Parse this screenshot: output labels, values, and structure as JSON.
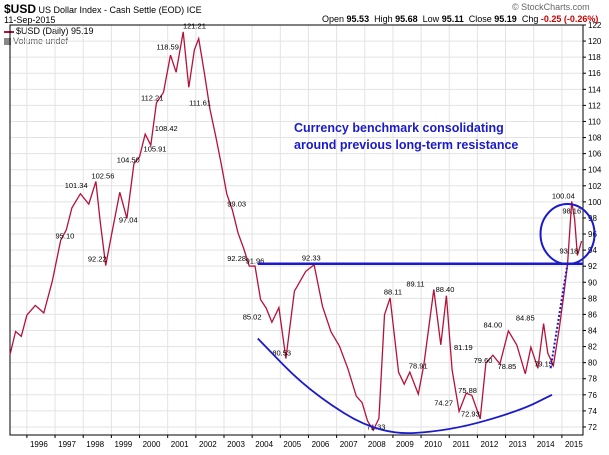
{
  "header": {
    "symbol": "$USD",
    "name": "US Dollar Index - Cash Settle (EOD) ICE",
    "date": "11-Sep-2015",
    "legend_line": "$USD (Daily) 95.19",
    "volume_line": "Volume undef",
    "watermark": "© StockCharts.com",
    "quotes": {
      "open_label": "Open",
      "open": "95.53",
      "high_label": "High",
      "high": "95.68",
      "low_label": "Low",
      "low": "95.11",
      "close_label": "Close",
      "close": "95.19",
      "chg_label": "Chg",
      "chg": "-0.25 (-0.26%)"
    }
  },
  "colors": {
    "price": "#b5123a",
    "annotation": "#1a1acc",
    "grid": "#e3e3e3",
    "axis": "#000000",
    "chg_negative": "#cc0000"
  },
  "chart_data": {
    "type": "line",
    "title": "$USD US Dollar Index - Cash Settle (EOD) ICE",
    "y_axis_side": "right",
    "ylim": [
      71,
      122
    ],
    "yticks": [
      72,
      74,
      76,
      78,
      80,
      82,
      84,
      86,
      88,
      90,
      92,
      94,
      96,
      98,
      100,
      102,
      104,
      106,
      108,
      110,
      112,
      114,
      116,
      118,
      120,
      122
    ],
    "xlim": [
      1995.4,
      2015.75
    ],
    "xticks": [
      1996,
      1997,
      1998,
      1999,
      2000,
      2001,
      2002,
      2003,
      2004,
      2005,
      2006,
      2007,
      2008,
      2009,
      2010,
      2011,
      2012,
      2013,
      2014,
      2015
    ],
    "grid": true,
    "series": [
      {
        "name": "$USD (Daily)",
        "x": [
          1995.4,
          1995.6,
          1995.8,
          1996.0,
          1996.3,
          1996.6,
          1996.9,
          1997.2,
          1997.4,
          1997.6,
          1997.9,
          1998.2,
          1998.45,
          1998.6,
          1998.8,
          1999.0,
          1999.3,
          1999.55,
          1999.8,
          2000.0,
          2000.2,
          2000.4,
          2000.6,
          2000.85,
          2001.1,
          2001.3,
          2001.55,
          2001.75,
          2001.95,
          2002.1,
          2002.3,
          2002.5,
          2002.7,
          2002.9,
          2003.1,
          2003.3,
          2003.5,
          2003.7,
          2003.9,
          2004.1,
          2004.3,
          2004.5,
          2004.7,
          2004.95,
          2005.2,
          2005.5,
          2005.9,
          2006.2,
          2006.5,
          2006.8,
          2007.1,
          2007.4,
          2007.7,
          2007.9,
          2008.1,
          2008.3,
          2008.5,
          2008.7,
          2008.9,
          2009.2,
          2009.4,
          2009.6,
          2009.9,
          2010.1,
          2010.45,
          2010.7,
          2010.9,
          2011.1,
          2011.35,
          2011.6,
          2011.8,
          2012.1,
          2012.3,
          2012.55,
          2012.8,
          2013.1,
          2013.4,
          2013.7,
          2013.9,
          2014.15,
          2014.35,
          2014.5,
          2014.7,
          2014.9,
          2015.05,
          2015.2,
          2015.35,
          2015.45,
          2015.55,
          2015.7
        ],
        "y": [
          81,
          84,
          83,
          86,
          87,
          86.5,
          90,
          95.1,
          96.5,
          99.2,
          101.34,
          99.5,
          102.56,
          97.5,
          92.22,
          96,
          101,
          98,
          104.5,
          105.9,
          108.42,
          107,
          112.21,
          113.5,
          118.59,
          116,
          121.21,
          114,
          119,
          120.5,
          116,
          111.61,
          108,
          105,
          101,
          99.03,
          96,
          94,
          92.28,
          91.96,
          88,
          86.5,
          85.02,
          87,
          80.53,
          89,
          91,
          92.33,
          87,
          84,
          82,
          79,
          76,
          75,
          73,
          71.33,
          73,
          86,
          88.11,
          79,
          77,
          78.91,
          76,
          80,
          89.11,
          82,
          88.4,
          79,
          74.27,
          76,
          75.88,
          72.93,
          80,
          81.19,
          79.6,
          84,
          82,
          78.85,
          82,
          79.15,
          84.85,
          81,
          80,
          84,
          88,
          92,
          100.04,
          98.16,
          93.18,
          95.19
        ]
      }
    ],
    "price_labels": [
      {
        "x": 1997.35,
        "y": 95.1,
        "text": "95.10"
      },
      {
        "x": 1997.75,
        "y": 101.34,
        "text": "101.34"
      },
      {
        "x": 1998.7,
        "y": 102.56,
        "text": "102.56"
      },
      {
        "x": 1998.5,
        "y": 92.22,
        "text": "92.22"
      },
      {
        "x": 1999.6,
        "y": 97.04,
        "text": "97.04"
      },
      {
        "x": 1999.6,
        "y": 104.5,
        "text": "104.50"
      },
      {
        "x": 2000.55,
        "y": 105.91,
        "text": "105.91"
      },
      {
        "x": 2000.95,
        "y": 108.42,
        "text": "108.42"
      },
      {
        "x": 2000.45,
        "y": 112.21,
        "text": "112.21"
      },
      {
        "x": 2001.0,
        "y": 118.59,
        "text": "118.59"
      },
      {
        "x": 2001.95,
        "y": 121.21,
        "text": "121.21"
      },
      {
        "x": 2002.15,
        "y": 111.61,
        "text": "111.61"
      },
      {
        "x": 2003.45,
        "y": 99.03,
        "text": "99.03"
      },
      {
        "x": 2003.45,
        "y": 92.28,
        "text": "92.28"
      },
      {
        "x": 2004.1,
        "y": 91.96,
        "text": "91.96"
      },
      {
        "x": 2004.0,
        "y": 85.02,
        "text": "85.02"
      },
      {
        "x": 2005.05,
        "y": 80.53,
        "text": "80.53"
      },
      {
        "x": 2006.1,
        "y": 92.33,
        "text": "92.33"
      },
      {
        "x": 2008.4,
        "y": 71.33,
        "text": "71.33"
      },
      {
        "x": 2009.0,
        "y": 88.11,
        "text": "88.11"
      },
      {
        "x": 2009.8,
        "y": 89.11,
        "text": "89.11"
      },
      {
        "x": 2009.9,
        "y": 78.91,
        "text": "78.91"
      },
      {
        "x": 2010.85,
        "y": 88.4,
        "text": "88.40"
      },
      {
        "x": 2010.8,
        "y": 74.27,
        "text": "74.27"
      },
      {
        "x": 2011.5,
        "y": 81.19,
        "text": "81.19"
      },
      {
        "x": 2011.65,
        "y": 75.88,
        "text": "75.88"
      },
      {
        "x": 2011.75,
        "y": 72.93,
        "text": "72.93"
      },
      {
        "x": 2012.2,
        "y": 79.6,
        "text": "79.60"
      },
      {
        "x": 2012.55,
        "y": 84.0,
        "text": "84.00"
      },
      {
        "x": 2013.05,
        "y": 78.85,
        "text": "78.85"
      },
      {
        "x": 2013.7,
        "y": 84.85,
        "text": "84.85"
      },
      {
        "x": 2014.35,
        "y": 79.15,
        "text": "79.15"
      },
      {
        "x": 2015.05,
        "y": 100.04,
        "text": "100.04"
      },
      {
        "x": 2015.35,
        "y": 98.16,
        "text": "98.16"
      },
      {
        "x": 2015.25,
        "y": 93.18,
        "text": "93.18"
      }
    ],
    "annotations": {
      "text_lines": [
        "Currency benchmark consolidating",
        "around previous long-term resistance"
      ],
      "resistance_level": 92.3,
      "resistance_from_x": 2004.2,
      "cup_points": [
        [
          2004.2,
          83
        ],
        [
          2006.0,
          76.5
        ],
        [
          2008.5,
          71
        ],
        [
          2011.0,
          71.5
        ],
        [
          2013.5,
          74
        ],
        [
          2014.65,
          76
        ]
      ],
      "dotted_trend": [
        [
          2014.6,
          79.3
        ],
        [
          2015.2,
          92.3
        ]
      ],
      "circle_center": [
        2015.2,
        96.0
      ]
    }
  }
}
